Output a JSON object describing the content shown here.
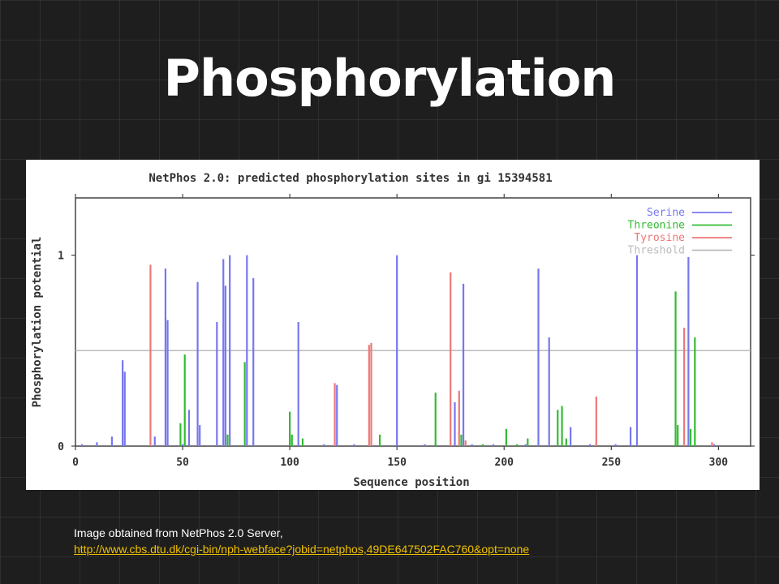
{
  "slide": {
    "title": "Phosphorylation",
    "caption_text": "Image obtained from NetPhos 2.0 Server,",
    "caption_link": "http://www.cbs.dtu.dk/cgi-bin/nph-webface?jobid=netphos,49DE647502FAC760&opt=none"
  },
  "colors": {
    "serine": "#7777ee",
    "threonine": "#33bb33",
    "tyrosine": "#ee7777",
    "threshold": "#bbbbbb",
    "link": "#f2c200"
  },
  "chart_data": {
    "type": "bar",
    "title": "NetPhos 2.0: predicted phosphorylation sites in gi 15394581",
    "xlabel": "Sequence position",
    "ylabel": "Phosphorylation potential",
    "xlim": [
      0,
      315
    ],
    "ylim": [
      0,
      1.3
    ],
    "xticks": [
      "0",
      "50",
      "100",
      "150",
      "200",
      "250",
      "300"
    ],
    "yticks": [
      "0",
      "1"
    ],
    "threshold": 0.5,
    "legend_position": "top-right",
    "series": [
      {
        "name": "Serine",
        "color": "#7777ee",
        "points": [
          [
            3,
            0.01
          ],
          [
            10,
            0.02
          ],
          [
            17,
            0.05
          ],
          [
            22,
            0.45
          ],
          [
            23,
            0.39
          ],
          [
            37,
            0.05
          ],
          [
            42,
            0.93
          ],
          [
            43,
            0.66
          ],
          [
            50,
            0.01
          ],
          [
            53,
            0.19
          ],
          [
            57,
            0.86
          ],
          [
            58,
            0.11
          ],
          [
            66,
            0.65
          ],
          [
            69,
            0.98
          ],
          [
            70,
            0.84
          ],
          [
            72,
            1.0
          ],
          [
            80,
            1.0
          ],
          [
            83,
            0.88
          ],
          [
            104,
            0.65
          ],
          [
            116,
            0.01
          ],
          [
            122,
            0.32
          ],
          [
            130,
            0.01
          ],
          [
            150,
            1.0
          ],
          [
            163,
            0.01
          ],
          [
            168,
            0.01
          ],
          [
            177,
            0.23
          ],
          [
            181,
            0.85
          ],
          [
            185,
            0.01
          ],
          [
            195,
            0.01
          ],
          [
            210,
            0.01
          ],
          [
            216,
            0.93
          ],
          [
            221,
            0.57
          ],
          [
            231,
            0.1
          ],
          [
            240,
            0.01
          ],
          [
            243,
            0.01
          ],
          [
            252,
            0.01
          ],
          [
            259,
            0.1
          ],
          [
            262,
            1.0
          ],
          [
            286,
            0.99
          ],
          [
            298,
            0.01
          ]
        ]
      },
      {
        "name": "Threonine",
        "color": "#33bb33",
        "points": [
          [
            49,
            0.12
          ],
          [
            51,
            0.48
          ],
          [
            71,
            0.06
          ],
          [
            79,
            0.44
          ],
          [
            100,
            0.18
          ],
          [
            101,
            0.06
          ],
          [
            106,
            0.04
          ],
          [
            142,
            0.06
          ],
          [
            168,
            0.28
          ],
          [
            175,
            0.01
          ],
          [
            180,
            0.06
          ],
          [
            190,
            0.01
          ],
          [
            201,
            0.09
          ],
          [
            206,
            0.01
          ],
          [
            211,
            0.04
          ],
          [
            225,
            0.19
          ],
          [
            227,
            0.21
          ],
          [
            229,
            0.04
          ],
          [
            280,
            0.81
          ],
          [
            281,
            0.11
          ],
          [
            287,
            0.09
          ],
          [
            289,
            0.57
          ]
        ]
      },
      {
        "name": "Tyrosine",
        "color": "#ee7777",
        "points": [
          [
            35,
            0.95
          ],
          [
            121,
            0.33
          ],
          [
            137,
            0.53
          ],
          [
            138,
            0.54
          ],
          [
            175,
            0.91
          ],
          [
            179,
            0.29
          ],
          [
            182,
            0.03
          ],
          [
            243,
            0.26
          ],
          [
            284,
            0.62
          ],
          [
            297,
            0.02
          ]
        ]
      },
      {
        "name": "Threshold",
        "color": "#bbbbbb",
        "points": []
      }
    ]
  }
}
